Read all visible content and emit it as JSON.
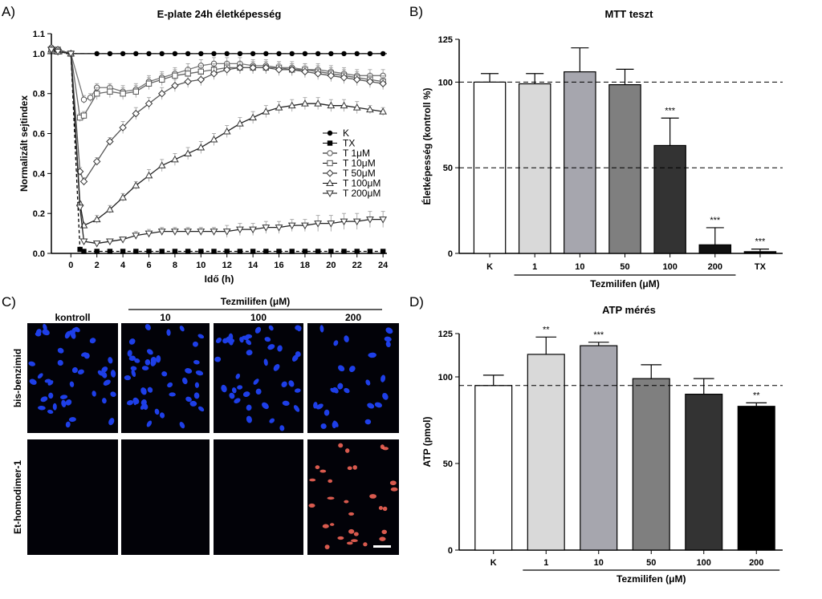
{
  "panels": {
    "a": {
      "letter": "A)"
    },
    "b": {
      "letter": "B)"
    },
    "c": {
      "letter": "C)"
    },
    "d": {
      "letter": "D)"
    }
  },
  "chart_data": [
    {
      "id": "A",
      "type": "line",
      "title": "E-plate 24h életképesség",
      "xlabel": "Idő (h)",
      "ylabel": "Normalizált sejtindex",
      "xlim": [
        -1.5,
        24.3
      ],
      "ylim": [
        0,
        1.1
      ],
      "xticks": [
        "0",
        "2",
        "4",
        "6",
        "8",
        "10",
        "12",
        "14",
        "16",
        "18",
        "20",
        "22",
        "24"
      ],
      "yticks": [
        "0.0",
        "0.2",
        "0.4",
        "0.6",
        "0.8",
        "1.0",
        "1.1"
      ],
      "reference_line": 1.0,
      "series": [
        {
          "name": "K",
          "marker": "filled-circle",
          "x": [
            -1.5,
            -1,
            0,
            1,
            2,
            3,
            4,
            5,
            6,
            7,
            8,
            9,
            10,
            11,
            12,
            13,
            14,
            15,
            16,
            17,
            18,
            19,
            20,
            21,
            22,
            23,
            24
          ],
          "y": [
            1.03,
            1.02,
            1.0,
            1.0,
            1.0,
            1.0,
            1.0,
            1.0,
            1.0,
            1.0,
            1.0,
            1.0,
            1.0,
            1.0,
            1.0,
            1.0,
            1.0,
            1.0,
            1.0,
            1.0,
            1.0,
            1.0,
            1.0,
            1.0,
            1.0,
            1.0,
            1.0
          ]
        },
        {
          "name": "TX",
          "marker": "filled-square",
          "x": [
            -1.5,
            -1,
            0,
            0.7,
            1,
            2,
            3,
            4,
            5,
            6,
            7,
            8,
            9,
            10,
            11,
            12,
            13,
            14,
            15,
            16,
            17,
            18,
            19,
            20,
            21,
            22,
            23,
            24
          ],
          "y": [
            1.02,
            1.01,
            1.0,
            0.02,
            0.01,
            0.01,
            0.01,
            0.01,
            0.01,
            0.01,
            0.01,
            0.01,
            0.01,
            0.01,
            0.01,
            0.01,
            0.01,
            0.01,
            0.01,
            0.01,
            0.01,
            0.01,
            0.01,
            0.01,
            0.01,
            0.01,
            0.01,
            0.01
          ]
        },
        {
          "name": "T 1μM",
          "marker": "open-circle",
          "x": [
            -1.5,
            -1,
            0,
            1,
            1.5,
            2,
            3,
            4,
            5,
            6,
            7,
            8,
            9,
            10,
            11,
            12,
            13,
            14,
            15,
            16,
            17,
            18,
            19,
            20,
            21,
            22,
            23,
            24
          ],
          "y": [
            1.03,
            1.02,
            1.0,
            0.77,
            0.78,
            0.83,
            0.83,
            0.81,
            0.82,
            0.86,
            0.88,
            0.9,
            0.92,
            0.94,
            0.95,
            0.95,
            0.95,
            0.94,
            0.94,
            0.93,
            0.93,
            0.92,
            0.92,
            0.91,
            0.9,
            0.89,
            0.89,
            0.89
          ],
          "err": [
            0.01,
            0.01,
            0,
            0.02,
            0.02,
            0.02,
            0.02,
            0.03,
            0.03,
            0.03,
            0.03,
            0.03,
            0.03,
            0.03,
            0.03,
            0.03,
            0.03,
            0.03,
            0.03,
            0.03,
            0.03,
            0.03,
            0.03,
            0.03,
            0.03,
            0.03,
            0.03,
            0.03
          ]
        },
        {
          "name": "T 10μM",
          "marker": "open-square",
          "x": [
            -1.5,
            -1,
            0,
            0.7,
            1,
            2,
            3,
            4,
            5,
            6,
            7,
            8,
            9,
            10,
            11,
            12,
            13,
            14,
            15,
            16,
            17,
            18,
            19,
            20,
            21,
            22,
            23,
            24
          ],
          "y": [
            1.02,
            1.02,
            1.0,
            0.68,
            0.69,
            0.8,
            0.81,
            0.8,
            0.81,
            0.85,
            0.87,
            0.89,
            0.9,
            0.91,
            0.92,
            0.93,
            0.93,
            0.93,
            0.93,
            0.93,
            0.92,
            0.92,
            0.91,
            0.9,
            0.89,
            0.88,
            0.87,
            0.86
          ],
          "err": [
            0.01,
            0.01,
            0,
            0.02,
            0.02,
            0.03,
            0.03,
            0.03,
            0.03,
            0.03,
            0.03,
            0.03,
            0.03,
            0.03,
            0.03,
            0.03,
            0.03,
            0.03,
            0.03,
            0.03,
            0.03,
            0.03,
            0.03,
            0.03,
            0.03,
            0.03,
            0.03,
            0.03
          ]
        },
        {
          "name": "T 50μM",
          "marker": "open-diamond",
          "x": [
            -1.5,
            -1,
            0,
            0.7,
            1,
            2,
            3,
            4,
            5,
            6,
            7,
            8,
            9,
            10,
            11,
            12,
            13,
            14,
            15,
            16,
            17,
            18,
            19,
            20,
            21,
            22,
            23,
            24
          ],
          "y": [
            1.03,
            1.02,
            1.0,
            0.41,
            0.36,
            0.46,
            0.56,
            0.63,
            0.7,
            0.75,
            0.8,
            0.84,
            0.86,
            0.87,
            0.9,
            0.92,
            0.93,
            0.93,
            0.93,
            0.92,
            0.92,
            0.91,
            0.9,
            0.89,
            0.88,
            0.87,
            0.86,
            0.85
          ],
          "err": [
            0.01,
            0.01,
            0,
            0.02,
            0.02,
            0.02,
            0.02,
            0.03,
            0.03,
            0.03,
            0.03,
            0.03,
            0.03,
            0.03,
            0.03,
            0.03,
            0.03,
            0.03,
            0.03,
            0.03,
            0.03,
            0.03,
            0.03,
            0.03,
            0.03,
            0.03,
            0.03,
            0.03
          ]
        },
        {
          "name": "T 100μM",
          "marker": "open-triangle-up",
          "x": [
            -1.5,
            -1,
            0,
            0.7,
            1,
            2,
            3,
            4,
            5,
            6,
            7,
            8,
            9,
            10,
            11,
            12,
            13,
            14,
            15,
            16,
            17,
            18,
            19,
            20,
            21,
            22,
            23,
            24
          ],
          "y": [
            1.02,
            1.01,
            1.0,
            0.25,
            0.14,
            0.17,
            0.22,
            0.28,
            0.34,
            0.39,
            0.44,
            0.47,
            0.5,
            0.53,
            0.57,
            0.61,
            0.65,
            0.68,
            0.71,
            0.73,
            0.74,
            0.75,
            0.75,
            0.74,
            0.74,
            0.73,
            0.72,
            0.71
          ],
          "err": [
            0.01,
            0.01,
            0,
            0.01,
            0.01,
            0.02,
            0.02,
            0.02,
            0.02,
            0.03,
            0.03,
            0.03,
            0.03,
            0.03,
            0.03,
            0.03,
            0.03,
            0.03,
            0.03,
            0.03,
            0.03,
            0.03,
            0.03,
            0.03,
            0.03,
            0.03,
            0.02,
            0.02
          ]
        },
        {
          "name": "T 200μM",
          "marker": "open-triangle-down",
          "x": [
            -1.5,
            -1,
            0,
            0.7,
            1,
            2,
            3,
            4,
            5,
            6,
            7,
            8,
            9,
            10,
            11,
            12,
            13,
            14,
            15,
            16,
            17,
            18,
            19,
            20,
            21,
            22,
            23,
            24
          ],
          "y": [
            1.02,
            1.01,
            1.0,
            0.23,
            0.06,
            0.05,
            0.06,
            0.07,
            0.09,
            0.1,
            0.11,
            0.11,
            0.11,
            0.11,
            0.11,
            0.11,
            0.12,
            0.12,
            0.13,
            0.13,
            0.14,
            0.14,
            0.15,
            0.15,
            0.16,
            0.16,
            0.17,
            0.17
          ],
          "err": [
            0.01,
            0.01,
            0,
            0.01,
            0.01,
            0.01,
            0.01,
            0.01,
            0.02,
            0.02,
            0.02,
            0.02,
            0.02,
            0.02,
            0.02,
            0.03,
            0.03,
            0.03,
            0.03,
            0.03,
            0.03,
            0.03,
            0.04,
            0.04,
            0.04,
            0.04,
            0.04,
            0.04
          ]
        }
      ]
    },
    {
      "id": "B",
      "type": "bar",
      "title": "MTT teszt",
      "ylabel": "Életképesség (kontroll %)",
      "ylim": [
        0,
        125
      ],
      "yticks": [
        "0",
        "50",
        "100",
        "125"
      ],
      "reference_lines": [
        100,
        50
      ],
      "categories": [
        "K",
        "1",
        "10",
        "50",
        "100",
        "200",
        "TX"
      ],
      "values": [
        100,
        99,
        106,
        98.5,
        63,
        5,
        1
      ],
      "errors": [
        5,
        6,
        14,
        9,
        16,
        10,
        1.5
      ],
      "colors": [
        "#ffffff",
        "#d9d9d9",
        "#a6a6ae",
        "#7f7f7f",
        "#333333",
        "#111111",
        "#000000"
      ],
      "significance": [
        "",
        "",
        "",
        "",
        "***",
        "***",
        "***"
      ],
      "group_label": "Tezmilifen (μM)"
    },
    {
      "id": "D",
      "type": "bar",
      "title": "ATP mérés",
      "ylabel": "ATP (pmol)",
      "ylim": [
        0,
        125
      ],
      "yticks": [
        "0",
        "50",
        "100",
        "125"
      ],
      "reference_lines": [
        95
      ],
      "categories": [
        "K",
        "1",
        "10",
        "50",
        "100",
        "200"
      ],
      "values": [
        95,
        113,
        118,
        99,
        90,
        83
      ],
      "errors": [
        6,
        10,
        2,
        8,
        9,
        2
      ],
      "colors": [
        "#ffffff",
        "#d9d9d9",
        "#a6a6ae",
        "#7f7f7f",
        "#333333",
        "#000000"
      ],
      "significance": [
        "",
        "**",
        "***",
        "",
        "",
        "**"
      ],
      "group_label": "Tezmilifen (μM)"
    }
  ],
  "micrographs": {
    "group_label": "Tezmilifen (μM)",
    "columns": [
      "kontroll",
      "10",
      "100",
      "200"
    ],
    "rows": [
      "bis-benzimid",
      "Et-homodimer-1"
    ],
    "nuclei_color": "#1e3fe8",
    "dead_color": "#ff6a5a"
  }
}
